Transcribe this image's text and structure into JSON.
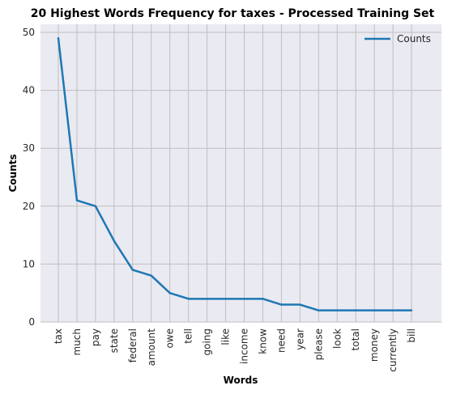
{
  "chart_data": {
    "type": "line",
    "title": "20 Highest Words Frequency for taxes - Processed Training Set",
    "xlabel": "Words",
    "ylabel": "Counts",
    "categories": [
      "tax",
      "much",
      "pay",
      "state",
      "federal",
      "amount",
      "owe",
      "tell",
      "going",
      "like",
      "income",
      "know",
      "need",
      "year",
      "please",
      "look",
      "total",
      "money",
      "currently",
      "bill"
    ],
    "series": [
      {
        "name": "Counts",
        "values": [
          49,
          21,
          20,
          14,
          9,
          8,
          5,
          4,
          4,
          4,
          4,
          4,
          3,
          3,
          2,
          2,
          2,
          2,
          2,
          2
        ],
        "color": "#1f77b4"
      }
    ],
    "yticks": [
      0,
      10,
      20,
      30,
      40,
      50
    ],
    "ylim": [
      0,
      51.4
    ],
    "grid": true,
    "legend_position": "top-right",
    "colors": {
      "plot_background": "#eaeaf2",
      "grid": "#bfbfbf",
      "line": "#1f77b4"
    }
  }
}
